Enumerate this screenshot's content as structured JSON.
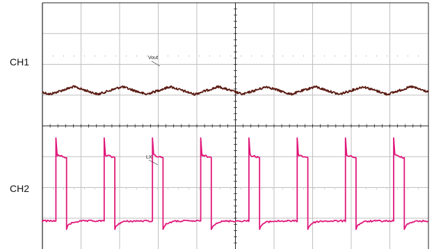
{
  "colors": {
    "ch1": "#5a1a12",
    "ch2": "#e0177a",
    "grid": "#bfbfbf",
    "frame": "#222222"
  },
  "chart_data": {
    "type": "line",
    "grid": true,
    "grid_divisions": {
      "x": 10,
      "y": 8
    },
    "channels": [
      {
        "label": "CH1",
        "probe": "Vout",
        "waveform": "ripple",
        "color": "#5a1a12",
        "cycles": 8,
        "level_div": 1.15,
        "amplitude_div": 0.25
      },
      {
        "label": "CH2",
        "probe": "LX",
        "waveform": "square",
        "color": "#e0177a",
        "cycles": 8,
        "duty": 0.22,
        "high_div": 1.05,
        "low_div": 0.0,
        "spike_div": 1.45,
        "first_rise_div": 0.35
      }
    ]
  }
}
